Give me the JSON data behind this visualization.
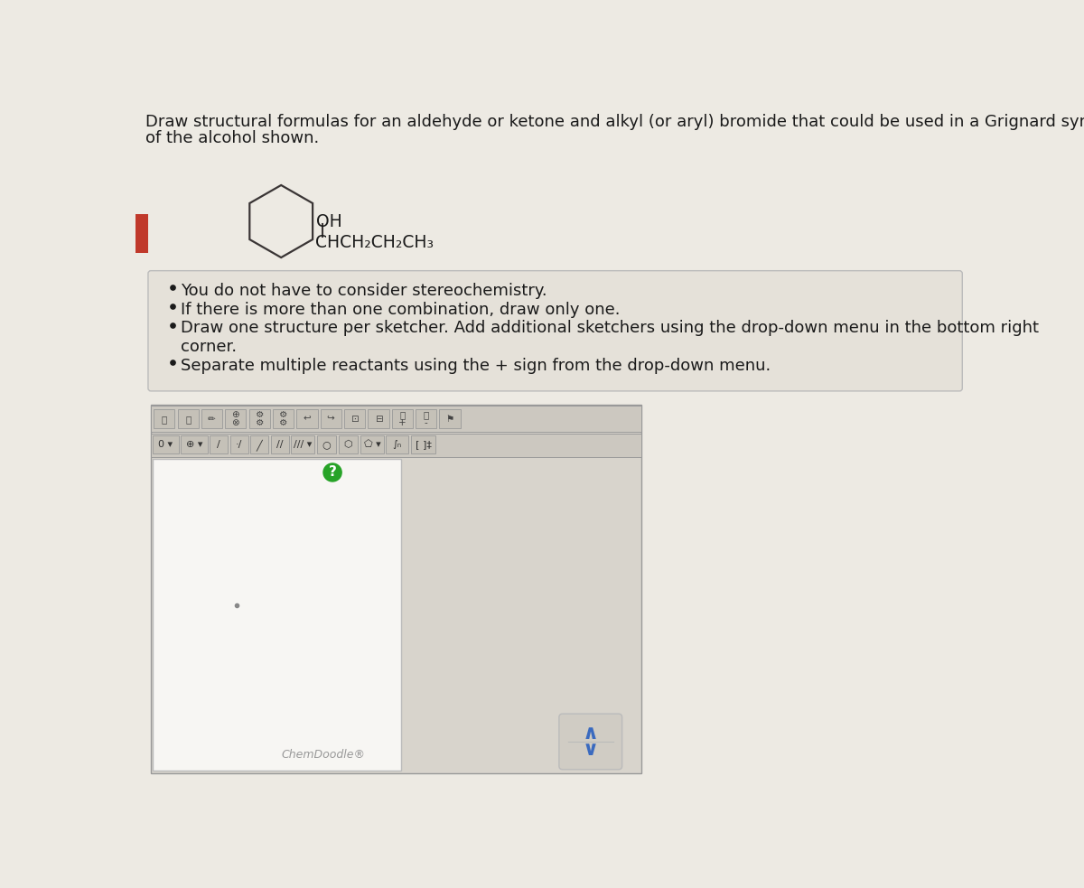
{
  "bg_color": "#edeae3",
  "title_text1": "Draw structural formulas for an aldehyde or ketone and alkyl (or aryl) bromide that could be used in a Grignard synthesis",
  "title_text2": "of the alcohol shown.",
  "title_fontsize": 13.0,
  "oh_label": "OH",
  "chain_label": "CHCH₂CH₂CH₃",
  "bullet_points": [
    "You do not have to consider stereochemistry.",
    "If there is more than one combination, draw only one.",
    "Draw one structure per sketcher. Add additional sketchers using the drop-down menu in the bottom right",
    "corner.",
    "Separate multiple reactants using the + sign from the drop-down menu."
  ],
  "bullet_points_display": [
    {
      "text": "You do not have to consider stereochemistry.",
      "indent": false
    },
    {
      "text": "If there is more than one combination, draw only one.",
      "indent": false
    },
    {
      "text": "Draw one structure per sketcher. Add additional sketchers using the drop-down menu in the bottom right",
      "indent": false
    },
    {
      "text": "corner.",
      "indent": true
    },
    {
      "text": "Separate multiple reactants using the + sign from the drop-down menu.",
      "indent": false
    }
  ],
  "chemdoodle_label": "ChemDoodle®",
  "red_tab_color": "#c0392b",
  "bullet_box_border": "#bbbbbb",
  "bullet_box_bg": "#e5e1d9"
}
